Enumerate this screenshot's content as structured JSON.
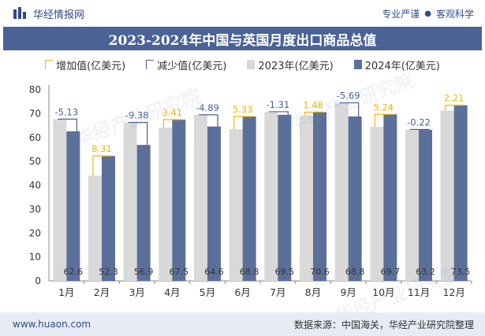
{
  "header": {
    "brand": "华经情报网",
    "tagline_left": "专业严谨",
    "tagline_dot": "●",
    "tagline_right": "客观科学"
  },
  "title": "2023-2024年中国与英国月度出口商品总值",
  "legend": {
    "increase": "增加值(亿美元)",
    "decrease": "减少值(亿美元)",
    "y2023": "2023年(亿美元)",
    "y2024": "2024年(亿美元)"
  },
  "footer": {
    "url": "www.huaon.com",
    "source": "数据来源：中国海关，华经产业研究院整理"
  },
  "watermark": "华经产业研究院",
  "colors": {
    "bar2023": "#d9d9d9",
    "bar2024": "#5b6f9b",
    "increase": "#f2b705",
    "decrease": "#4a6296",
    "axis": "#888888"
  },
  "chart_data": {
    "type": "bar",
    "title": "2023-2024年中国与英国月度出口商品总值",
    "xlabel": "",
    "ylabel": "",
    "ylim": [
      0,
      80
    ],
    "yticks": [
      0,
      10,
      20,
      30,
      40,
      50,
      60,
      70,
      80
    ],
    "categories": [
      "1月",
      "2月",
      "3月",
      "4月",
      "5月",
      "6月",
      "7月",
      "8月",
      "9月",
      "10月",
      "11月",
      "12月"
    ],
    "series": [
      {
        "name": "2023年(亿美元)",
        "values": [
          67.7,
          44.0,
          66.3,
          64.1,
          69.5,
          63.5,
          70.8,
          69.1,
          74.5,
          64.5,
          63.4,
          71.3
        ]
      },
      {
        "name": "2024年(亿美元)",
        "values": [
          62.6,
          52.3,
          56.9,
          67.5,
          64.6,
          68.8,
          69.5,
          70.6,
          68.8,
          69.7,
          63.2,
          73.5
        ]
      }
    ],
    "difference": {
      "labels": [
        "-5.13",
        "8.31",
        "-9.38",
        "3.41",
        "-4.89",
        "5.33",
        "-1.31",
        "1.48",
        "-5.69",
        "5.24",
        "-0.22",
        "2.21"
      ],
      "values": [
        -5.13,
        8.31,
        -9.38,
        3.41,
        -4.89,
        5.33,
        -1.31,
        1.48,
        -5.69,
        5.24,
        -0.22,
        2.21
      ]
    },
    "value_labels_2024": [
      "62.6",
      "52.3",
      "56.9",
      "67.5",
      "64.6",
      "68.8",
      "69.5",
      "70.6",
      "68.8",
      "69.7",
      "63.2",
      "73.5"
    ]
  }
}
